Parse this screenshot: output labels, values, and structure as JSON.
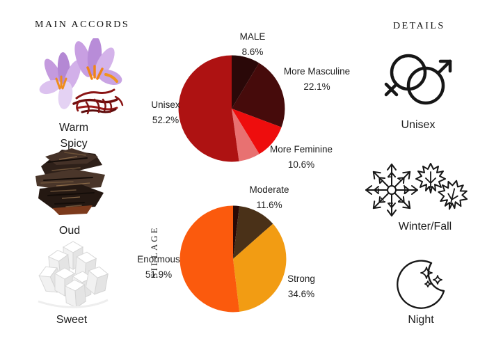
{
  "headers": {
    "main_accords": "MAIN ACCORDS",
    "details": "DETAILS"
  },
  "accords": [
    {
      "name": "Warm Spicy",
      "image": "saffron-crocus"
    },
    {
      "name": "Oud",
      "image": "oud-wood"
    },
    {
      "name": "Sweet",
      "image": "sugar-cubes"
    }
  ],
  "details": [
    {
      "label": "Unisex",
      "icon": "gender-unisex-icon"
    },
    {
      "label": "Winter/Fall",
      "icon": "winter-fall-icon"
    },
    {
      "label": "Night",
      "icon": "night-icon"
    }
  ],
  "chart_data": [
    {
      "type": "pie",
      "title": "",
      "legend_position": "none",
      "slices": [
        {
          "label": "MALE",
          "pct": "8.6%",
          "value": 8.6,
          "color": "#2a0808"
        },
        {
          "label": "More Masculine",
          "pct": "22.1%",
          "value": 22.1,
          "color": "#460b0b"
        },
        {
          "label": "More Feminine",
          "pct": "10.6%",
          "value": 10.6,
          "color": "#ee0d0d"
        },
        {
          "label": "",
          "pct": "",
          "value": 6.5,
          "color": "#e87171"
        },
        {
          "label": "Unisex",
          "pct": "52.2%",
          "value": 52.2,
          "color": "#ae1212"
        }
      ]
    },
    {
      "type": "pie",
      "title": "",
      "ylabel": "SILLAGE",
      "legend_position": "none",
      "slices": [
        {
          "label": "",
          "pct": "",
          "value": 1.9,
          "color": "#2a0a06"
        },
        {
          "label": "Moderate",
          "pct": "11.6%",
          "value": 11.6,
          "color": "#4a3118"
        },
        {
          "label": "Strong",
          "pct": "34.6%",
          "value": 34.6,
          "color": "#f29c13"
        },
        {
          "label": "Enormous",
          "pct": "51.9%",
          "value": 51.9,
          "color": "#fb5a0d"
        }
      ]
    }
  ]
}
